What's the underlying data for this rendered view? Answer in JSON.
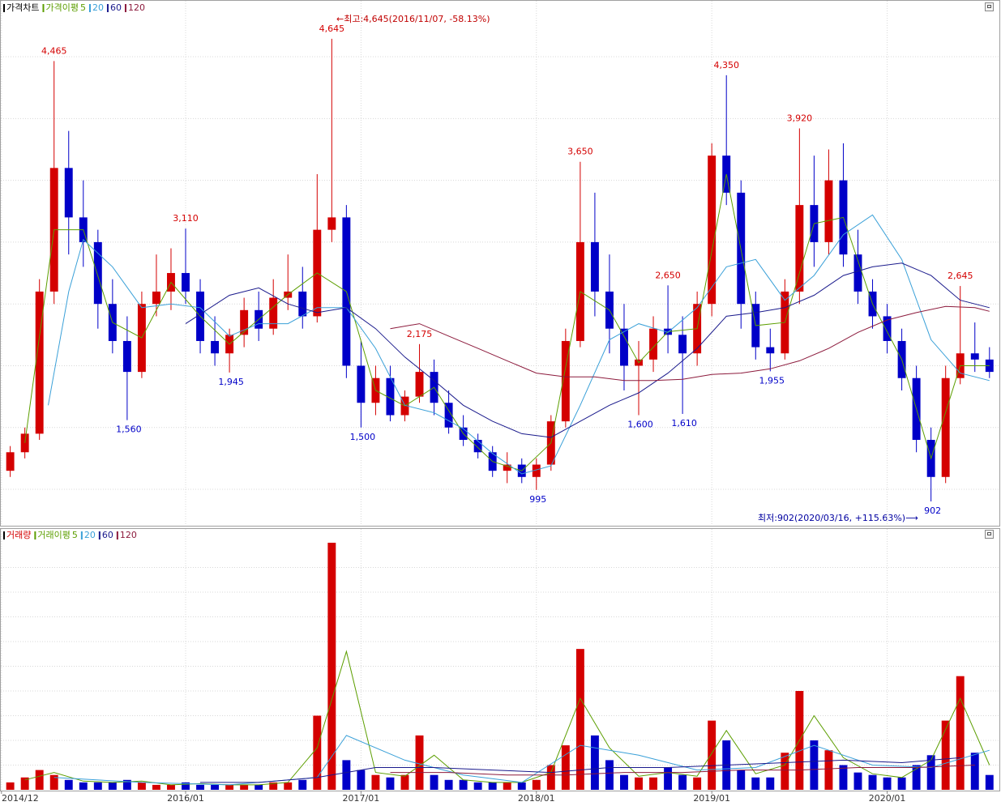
{
  "chart_data": [
    {
      "type": "candlestick",
      "title": "가격차트",
      "ma_label": "가격이평",
      "up_color": "#d40000",
      "down_color": "#0000c8",
      "xlim": [
        0.3,
        68.4
      ],
      "ylim": [
        712,
        4959
      ],
      "yticks": [
        1000,
        1500,
        2000,
        2500,
        3000,
        3500,
        4000,
        4500
      ],
      "xticks": [
        {
          "value": 0.4,
          "label": "2014/12"
        },
        {
          "value": 13,
          "label": "2016/01"
        },
        {
          "value": 25,
          "label": "2017/01"
        },
        {
          "value": 37,
          "label": "2018/01"
        },
        {
          "value": 49,
          "label": "2019/01"
        },
        {
          "value": 61,
          "label": "2020/01"
        }
      ],
      "grid": true,
      "x": [
        1,
        2,
        3,
        4,
        5,
        6,
        7,
        8,
        9,
        10,
        11,
        12,
        13,
        14,
        15,
        16,
        17,
        18,
        19,
        20,
        21,
        22,
        23,
        24,
        25,
        26,
        27,
        28,
        29,
        30,
        31,
        32,
        33,
        34,
        35,
        36,
        37,
        38,
        39,
        40,
        41,
        42,
        43,
        44,
        45,
        46,
        47,
        48,
        49,
        50,
        51,
        52,
        53,
        54,
        55,
        56,
        57,
        58,
        59,
        60,
        61,
        62,
        63,
        64,
        65,
        66,
        67,
        68
      ],
      "open": [
        1150,
        1300,
        1450,
        2600,
        3600,
        3200,
        3000,
        2500,
        2200,
        1950,
        2500,
        2600,
        2750,
        2600,
        2200,
        2100,
        2250,
        2450,
        2300,
        2550,
        2600,
        2400,
        3100,
        3200,
        2000,
        1700,
        1900,
        1600,
        1750,
        1950,
        1700,
        1500,
        1400,
        1300,
        1150,
        1200,
        1100,
        1200,
        1550,
        2200,
        3000,
        2600,
        2300,
        2000,
        2050,
        2300,
        2250,
        2100,
        2500,
        3700,
        3400,
        2500,
        2150,
        2100,
        2600,
        3300,
        3000,
        3500,
        2900,
        2600,
        2400,
        2200,
        1900,
        1400,
        1100,
        1900,
        2100,
        2050
      ],
      "high": [
        1350,
        1500,
        2700,
        4465,
        3900,
        3500,
        3100,
        2700,
        2400,
        2600,
        2900,
        2950,
        3110,
        2700,
        2400,
        2300,
        2550,
        2600,
        2700,
        2900,
        2800,
        3550,
        4645,
        3300,
        2200,
        2000,
        2000,
        1800,
        2175,
        2050,
        1800,
        1600,
        1450,
        1350,
        1300,
        1250,
        1250,
        1600,
        2300,
        3650,
        3400,
        2900,
        2500,
        2200,
        2400,
        2650,
        2400,
        2600,
        3800,
        4350,
        3500,
        2600,
        2300,
        2700,
        3920,
        3700,
        3750,
        3800,
        3100,
        2700,
        2500,
        2300,
        2000,
        1500,
        2000,
        2645,
        2350,
        2150
      ],
      "low": [
        1100,
        1250,
        1400,
        2500,
        2900,
        2800,
        2300,
        2100,
        1560,
        1900,
        2400,
        2450,
        2500,
        2100,
        2000,
        1945,
        2150,
        2200,
        2250,
        2450,
        2300,
        2350,
        3000,
        1900,
        1500,
        1600,
        1550,
        1550,
        1700,
        1600,
        1450,
        1350,
        1250,
        1100,
        1050,
        1050,
        995,
        1150,
        1500,
        2150,
        2400,
        2100,
        1800,
        1600,
        1950,
        2100,
        1610,
        2000,
        2400,
        3300,
        2300,
        2050,
        1955,
        2050,
        2500,
        2800,
        2900,
        2800,
        2500,
        2300,
        2100,
        1800,
        1300,
        902,
        1050,
        1850,
        1950,
        1900
      ],
      "close": [
        1300,
        1450,
        2600,
        3600,
        3200,
        3000,
        2500,
        2200,
        1950,
        2500,
        2600,
        2750,
        2600,
        2200,
        2100,
        2250,
        2450,
        2300,
        2550,
        2600,
        2400,
        3100,
        3200,
        2000,
        1700,
        1900,
        1600,
        1750,
        1950,
        1700,
        1500,
        1400,
        1300,
        1150,
        1200,
        1100,
        1200,
        1550,
        2200,
        3000,
        2600,
        2300,
        2000,
        2050,
        2300,
        2250,
        2100,
        2500,
        3700,
        3400,
        2500,
        2150,
        2100,
        2600,
        3300,
        3000,
        3500,
        2900,
        2600,
        2400,
        2200,
        1900,
        1400,
        1100,
        1900,
        2100,
        2050,
        1950
      ],
      "series": [
        {
          "name": "5",
          "color": "#5c9e00",
          "x": [
            2,
            4,
            6,
            8,
            10,
            12,
            14,
            16,
            18,
            20,
            22,
            24,
            26,
            28,
            30,
            32,
            34,
            36,
            38,
            40,
            42,
            44,
            46,
            48,
            50,
            52,
            54,
            56,
            58,
            60,
            62,
            64,
            66,
            68
          ],
          "values": [
            1375,
            3100,
            3100,
            2350,
            2225,
            2675,
            2400,
            2175,
            2375,
            2575,
            2750,
            2600,
            1800,
            1675,
            1825,
            1450,
            1225,
            1150,
            1375,
            2600,
            2450,
            2025,
            2275,
            2300,
            3550,
            2325,
            2350,
            3150,
            3200,
            2500,
            2050,
            1250,
            2000,
            2000
          ]
        },
        {
          "name": "20",
          "color": "#3aa0d8",
          "x": [
            3.6,
            5,
            6,
            8,
            10,
            12,
            14,
            16,
            18,
            20,
            22,
            24,
            26,
            28,
            30,
            32,
            34,
            36,
            38,
            40,
            42,
            44,
            46,
            48,
            50,
            52,
            54,
            56,
            58,
            60,
            62,
            64,
            66,
            68
          ],
          "values": [
            1680,
            2600,
            3020,
            2800,
            2470,
            2500,
            2470,
            2240,
            2340,
            2340,
            2470,
            2470,
            2140,
            1680,
            1620,
            1490,
            1290,
            1125,
            1190,
            1680,
            2210,
            2340,
            2270,
            2470,
            2800,
            2860,
            2530,
            2730,
            3060,
            3220,
            2860,
            2210,
            1940,
            1880
          ]
        },
        {
          "name": "60",
          "color": "#1a1a8c",
          "x": [
            13,
            16,
            18,
            20,
            22,
            24,
            26,
            28,
            30,
            32,
            34,
            36,
            38,
            40,
            42,
            44,
            46,
            48,
            50,
            52,
            54,
            56,
            58,
            60,
            62,
            64,
            66,
            68
          ],
          "values": [
            2340,
            2570,
            2630,
            2500,
            2430,
            2470,
            2300,
            2070,
            1880,
            1680,
            1550,
            1450,
            1420,
            1550,
            1680,
            1780,
            1940,
            2140,
            2400,
            2430,
            2470,
            2570,
            2730,
            2800,
            2830,
            2730,
            2530,
            2470
          ]
        },
        {
          "name": "120",
          "color": "#8c1a3c",
          "x": [
            27,
            29,
            31,
            33,
            35,
            37,
            39,
            41,
            43,
            45,
            47,
            49,
            51,
            53,
            55,
            57,
            59,
            61,
            63,
            65,
            67,
            68
          ],
          "values": [
            2300,
            2340,
            2240,
            2140,
            2040,
            1940,
            1910,
            1910,
            1880,
            1880,
            1890,
            1930,
            1940,
            1975,
            2040,
            2140,
            2270,
            2370,
            2430,
            2480,
            2470,
            2440
          ]
        }
      ],
      "extremes": [
        {
          "x": 4,
          "value": 4465,
          "label": "4,465",
          "color": "#d40000"
        },
        {
          "x": 23,
          "value": 4645,
          "label": "4,645",
          "color": "#d40000"
        },
        {
          "x": 13,
          "value": 3110,
          "label": "3,110",
          "color": "#d40000"
        },
        {
          "x": 9,
          "value": 1560,
          "label": "1,560",
          "color": "#0000c8"
        },
        {
          "x": 16,
          "value": 1945,
          "label": "1,945",
          "color": "#0000c8"
        },
        {
          "x": 25,
          "value": 1500,
          "label": "1,500",
          "color": "#0000c8"
        },
        {
          "x": 29,
          "value": 2175,
          "label": "2,175",
          "color": "#d40000"
        },
        {
          "x": 37,
          "value": 995,
          "label": "995",
          "color": "#0000c8"
        },
        {
          "x": 40,
          "value": 3650,
          "label": "3,650",
          "color": "#d40000"
        },
        {
          "x": 44,
          "value": 1600,
          "label": "1,600",
          "color": "#0000c8"
        },
        {
          "x": 46,
          "value": 2650,
          "label": "2,650",
          "color": "#d40000"
        },
        {
          "x": 47,
          "value": 1610,
          "label": "1,610",
          "color": "#0000c8"
        },
        {
          "x": 50,
          "value": 4350,
          "label": "4,350",
          "color": "#d40000"
        },
        {
          "x": 53,
          "value": 1955,
          "label": "1,955",
          "color": "#0000c8"
        },
        {
          "x": 55,
          "value": 3920,
          "label": "3,920",
          "color": "#d40000"
        },
        {
          "x": 64,
          "value": 902,
          "label": "902",
          "color": "#0000c8"
        },
        {
          "x": 66,
          "value": 2645,
          "label": "2,645",
          "color": "#d40000"
        }
      ],
      "high_note": "←최고:4,645(2016/11/07, -58.13%)",
      "low_note": "최저:902(2020/03/16, +115.63%)⟶"
    },
    {
      "type": "bar",
      "title": "거래량",
      "ma_label": "거래이평",
      "ylim": [
        0,
        100
      ],
      "yticks": [
        10,
        20,
        30,
        40,
        50,
        60,
        70,
        80,
        90
      ],
      "grid": true,
      "values": [
        3,
        5,
        8,
        6,
        4,
        3,
        3,
        3,
        4,
        3,
        2,
        2,
        3,
        2,
        2,
        2,
        2,
        2,
        3,
        3,
        4,
        30,
        100,
        12,
        8,
        6,
        5,
        6,
        22,
        6,
        4,
        4,
        3,
        3,
        3,
        3,
        4,
        10,
        18,
        57,
        22,
        12,
        6,
        5,
        5,
        9,
        6,
        5,
        28,
        20,
        8,
        5,
        5,
        15,
        40,
        20,
        16,
        10,
        7,
        6,
        5,
        5,
        10,
        14,
        28,
        46,
        15,
        6
      ],
      "series": [
        {
          "name": "5",
          "color": "#5c9e00",
          "x": [
            2,
            4,
            6,
            8,
            10,
            12,
            14,
            16,
            18,
            20,
            22,
            24,
            26,
            28,
            30,
            32,
            34,
            36,
            38,
            40,
            42,
            44,
            46,
            48,
            50,
            52,
            54,
            56,
            58,
            60,
            62,
            64,
            66,
            68
          ],
          "values": [
            4,
            7,
            3.5,
            3,
            3.5,
            2,
            2.5,
            2,
            2,
            3,
            17,
            56,
            7,
            5.5,
            14,
            4,
            3,
            3,
            7,
            37,
            17,
            5.5,
            7,
            5.5,
            24,
            6.5,
            10,
            30,
            13,
            6.5,
            5,
            12,
            37,
            10
          ]
        },
        {
          "name": "20",
          "color": "#3aa0d8",
          "x": [
            4,
            10,
            16,
            22,
            24,
            28,
            32,
            36,
            40,
            44,
            48,
            52,
            56,
            60,
            64,
            68
          ],
          "values": [
            5,
            3,
            2,
            5,
            22,
            12,
            6,
            3,
            18,
            14,
            8,
            9,
            18,
            10,
            9,
            16
          ]
        },
        {
          "name": "60",
          "color": "#1a1a8c",
          "x": [
            14,
            18,
            22,
            26,
            30,
            34,
            38,
            42,
            46,
            50,
            54,
            58,
            62,
            66
          ],
          "values": [
            3,
            3,
            5,
            9,
            9,
            8,
            7,
            9,
            9,
            10,
            11,
            12,
            11,
            13
          ]
        },
        {
          "name": "120",
          "color": "#8c1a3c",
          "x": [
            27,
            31,
            35,
            39,
            43,
            47,
            51,
            55,
            59,
            63,
            67
          ],
          "values": [
            7,
            7,
            6,
            6,
            7,
            7,
            8,
            8,
            9,
            9,
            10
          ]
        }
      ]
    }
  ]
}
